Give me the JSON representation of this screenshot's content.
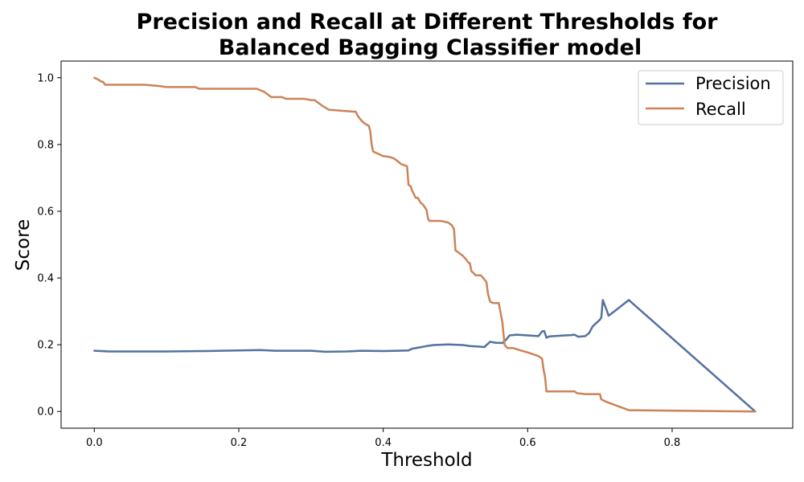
{
  "chart_data": {
    "type": "line",
    "title_lines": [
      "Precision and Recall at Different Thresholds for",
      "Balanced Bagging Classifier  model"
    ],
    "xlabel": "Threshold",
    "ylabel": "Score",
    "xlim": [
      -0.046,
      0.967
    ],
    "ylim": [
      -0.05,
      1.05
    ],
    "xticks": [
      0.0,
      0.2,
      0.4,
      0.6,
      0.8
    ],
    "xtick_labels": [
      "0.0",
      "0.2",
      "0.4",
      "0.6",
      "0.8"
    ],
    "yticks": [
      0.0,
      0.2,
      0.4,
      0.6,
      0.8,
      1.0
    ],
    "ytick_labels": [
      "0.0",
      "0.2",
      "0.4",
      "0.6",
      "0.8",
      "1.0"
    ],
    "grid": false,
    "legend_position": "upper right",
    "series": [
      {
        "name": "Precision",
        "color": "#5471a1",
        "points": [
          [
            0.0,
            0.182
          ],
          [
            0.01,
            0.181
          ],
          [
            0.02,
            0.18
          ],
          [
            0.05,
            0.18
          ],
          [
            0.1,
            0.18
          ],
          [
            0.15,
            0.181
          ],
          [
            0.2,
            0.183
          ],
          [
            0.23,
            0.184
          ],
          [
            0.25,
            0.182
          ],
          [
            0.28,
            0.182
          ],
          [
            0.3,
            0.182
          ],
          [
            0.32,
            0.179
          ],
          [
            0.35,
            0.18
          ],
          [
            0.37,
            0.182
          ],
          [
            0.4,
            0.181
          ],
          [
            0.42,
            0.182
          ],
          [
            0.435,
            0.183
          ],
          [
            0.44,
            0.188
          ],
          [
            0.45,
            0.192
          ],
          [
            0.46,
            0.196
          ],
          [
            0.47,
            0.199
          ],
          [
            0.48,
            0.2
          ],
          [
            0.49,
            0.201
          ],
          [
            0.5,
            0.2
          ],
          [
            0.51,
            0.199
          ],
          [
            0.52,
            0.196
          ],
          [
            0.53,
            0.195
          ],
          [
            0.54,
            0.193
          ],
          [
            0.548,
            0.209
          ],
          [
            0.555,
            0.206
          ],
          [
            0.565,
            0.205
          ],
          [
            0.57,
            0.215
          ],
          [
            0.575,
            0.228
          ],
          [
            0.585,
            0.23
          ],
          [
            0.6,
            0.228
          ],
          [
            0.615,
            0.226
          ],
          [
            0.62,
            0.24
          ],
          [
            0.623,
            0.241
          ],
          [
            0.626,
            0.221
          ],
          [
            0.63,
            0.225
          ],
          [
            0.645,
            0.227
          ],
          [
            0.66,
            0.229
          ],
          [
            0.665,
            0.23
          ],
          [
            0.67,
            0.224
          ],
          [
            0.68,
            0.226
          ],
          [
            0.685,
            0.235
          ],
          [
            0.69,
            0.255
          ],
          [
            0.7,
            0.275
          ],
          [
            0.702,
            0.282
          ],
          [
            0.704,
            0.334
          ],
          [
            0.71,
            0.3
          ],
          [
            0.712,
            0.287
          ],
          [
            0.72,
            0.3
          ],
          [
            0.74,
            0.334
          ],
          [
            0.915,
            0.0
          ]
        ]
      },
      {
        "name": "Recall",
        "color": "#cc8358",
        "points": [
          [
            0.0,
            1.0
          ],
          [
            0.005,
            0.995
          ],
          [
            0.01,
            0.988
          ],
          [
            0.012,
            0.988
          ],
          [
            0.015,
            0.979
          ],
          [
            0.05,
            0.979
          ],
          [
            0.07,
            0.979
          ],
          [
            0.09,
            0.975
          ],
          [
            0.1,
            0.972
          ],
          [
            0.14,
            0.972
          ],
          [
            0.145,
            0.967
          ],
          [
            0.2,
            0.967
          ],
          [
            0.225,
            0.967
          ],
          [
            0.235,
            0.958
          ],
          [
            0.245,
            0.942
          ],
          [
            0.26,
            0.942
          ],
          [
            0.265,
            0.937
          ],
          [
            0.29,
            0.937
          ],
          [
            0.3,
            0.933
          ],
          [
            0.305,
            0.933
          ],
          [
            0.31,
            0.925
          ],
          [
            0.315,
            0.917
          ],
          [
            0.325,
            0.904
          ],
          [
            0.35,
            0.9
          ],
          [
            0.362,
            0.898
          ],
          [
            0.365,
            0.885
          ],
          [
            0.37,
            0.871
          ],
          [
            0.375,
            0.862
          ],
          [
            0.38,
            0.856
          ],
          [
            0.382,
            0.84
          ],
          [
            0.384,
            0.8
          ],
          [
            0.386,
            0.779
          ],
          [
            0.39,
            0.775
          ],
          [
            0.4,
            0.765
          ],
          [
            0.405,
            0.764
          ],
          [
            0.41,
            0.762
          ],
          [
            0.415,
            0.758
          ],
          [
            0.42,
            0.75
          ],
          [
            0.425,
            0.741
          ],
          [
            0.433,
            0.735
          ],
          [
            0.435,
            0.679
          ],
          [
            0.438,
            0.675
          ],
          [
            0.44,
            0.662
          ],
          [
            0.445,
            0.64
          ],
          [
            0.448,
            0.64
          ],
          [
            0.452,
            0.625
          ],
          [
            0.455,
            0.62
          ],
          [
            0.46,
            0.604
          ],
          [
            0.462,
            0.578
          ],
          [
            0.464,
            0.571
          ],
          [
            0.48,
            0.571
          ],
          [
            0.49,
            0.566
          ],
          [
            0.495,
            0.558
          ],
          [
            0.498,
            0.546
          ],
          [
            0.5,
            0.483
          ],
          [
            0.505,
            0.475
          ],
          [
            0.51,
            0.467
          ],
          [
            0.515,
            0.455
          ],
          [
            0.518,
            0.446
          ],
          [
            0.52,
            0.444
          ],
          [
            0.522,
            0.421
          ],
          [
            0.528,
            0.408
          ],
          [
            0.535,
            0.408
          ],
          [
            0.54,
            0.396
          ],
          [
            0.543,
            0.387
          ],
          [
            0.545,
            0.353
          ],
          [
            0.548,
            0.329
          ],
          [
            0.552,
            0.325
          ],
          [
            0.56,
            0.325
          ],
          [
            0.565,
            0.267
          ],
          [
            0.568,
            0.2
          ],
          [
            0.572,
            0.19
          ],
          [
            0.58,
            0.19
          ],
          [
            0.59,
            0.183
          ],
          [
            0.6,
            0.177
          ],
          [
            0.615,
            0.166
          ],
          [
            0.62,
            0.158
          ],
          [
            0.622,
            0.125
          ],
          [
            0.624,
            0.104
          ],
          [
            0.626,
            0.06
          ],
          [
            0.66,
            0.06
          ],
          [
            0.665,
            0.06
          ],
          [
            0.668,
            0.055
          ],
          [
            0.68,
            0.052
          ],
          [
            0.7,
            0.052
          ],
          [
            0.702,
            0.036
          ],
          [
            0.71,
            0.028
          ],
          [
            0.74,
            0.004
          ],
          [
            0.915,
            0.0
          ]
        ]
      }
    ]
  }
}
